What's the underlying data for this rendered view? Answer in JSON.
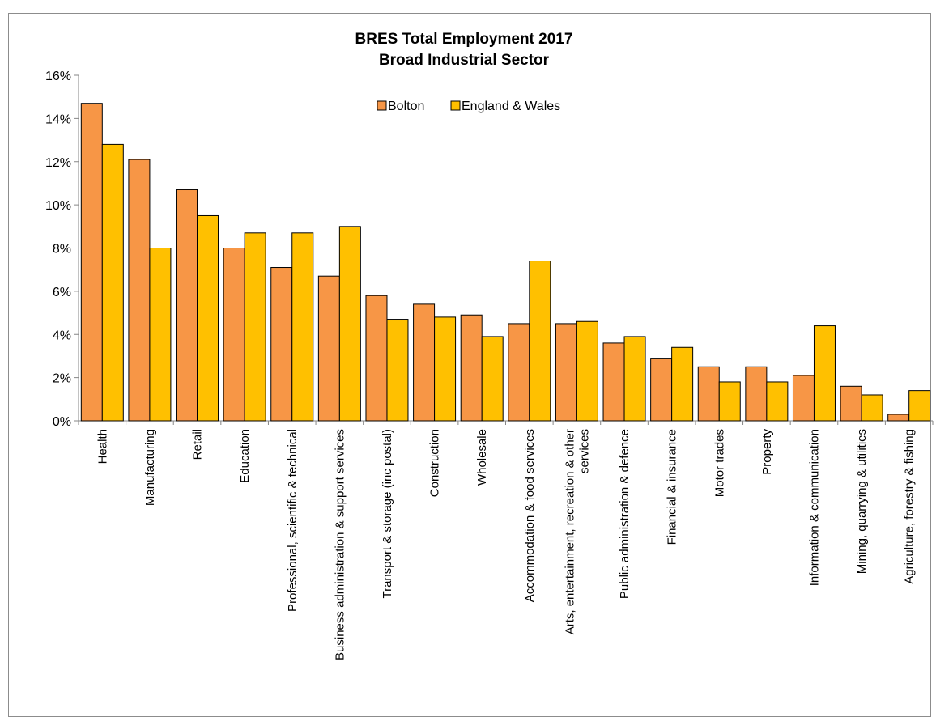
{
  "chart_data": {
    "type": "bar",
    "title": "BRES Total Employment 2017",
    "subtitle": "Broad Industrial Sector",
    "xlabel": "",
    "ylabel": "",
    "ylim": [
      0,
      16
    ],
    "y_tick_step": 2,
    "y_tick_suffix": "%",
    "legend_position": "top-center",
    "grid": false,
    "categories": [
      [
        "Health"
      ],
      [
        "Manufacturing"
      ],
      [
        "Retail"
      ],
      [
        "Education"
      ],
      [
        "Professional, scientific & technical"
      ],
      [
        "Business administration & support services"
      ],
      [
        "Transport & storage (inc postal)"
      ],
      [
        "Construction"
      ],
      [
        "Wholesale"
      ],
      [
        "Accommodation & food services"
      ],
      [
        "Arts, entertainment, recreation & other",
        "services"
      ],
      [
        "Public administration & defence"
      ],
      [
        "Financial & insurance"
      ],
      [
        "Motor trades"
      ],
      [
        "Property"
      ],
      [
        "Information & communication"
      ],
      [
        "Mining, quarrying & utilities"
      ],
      [
        "Agriculture, forestry & fishing"
      ]
    ],
    "series": [
      {
        "name": "Bolton",
        "color": "#f79646",
        "values": [
          14.7,
          12.1,
          10.7,
          8.0,
          7.1,
          6.7,
          5.8,
          5.4,
          4.9,
          4.5,
          4.5,
          3.6,
          2.9,
          2.5,
          2.5,
          2.1,
          1.6,
          0.3
        ]
      },
      {
        "name": "England & Wales",
        "color": "#ffc000",
        "values": [
          12.8,
          8.0,
          9.5,
          8.7,
          8.7,
          9.0,
          4.7,
          4.8,
          3.9,
          7.4,
          4.6,
          3.9,
          3.4,
          1.8,
          1.8,
          4.4,
          1.2,
          1.4
        ]
      }
    ]
  }
}
